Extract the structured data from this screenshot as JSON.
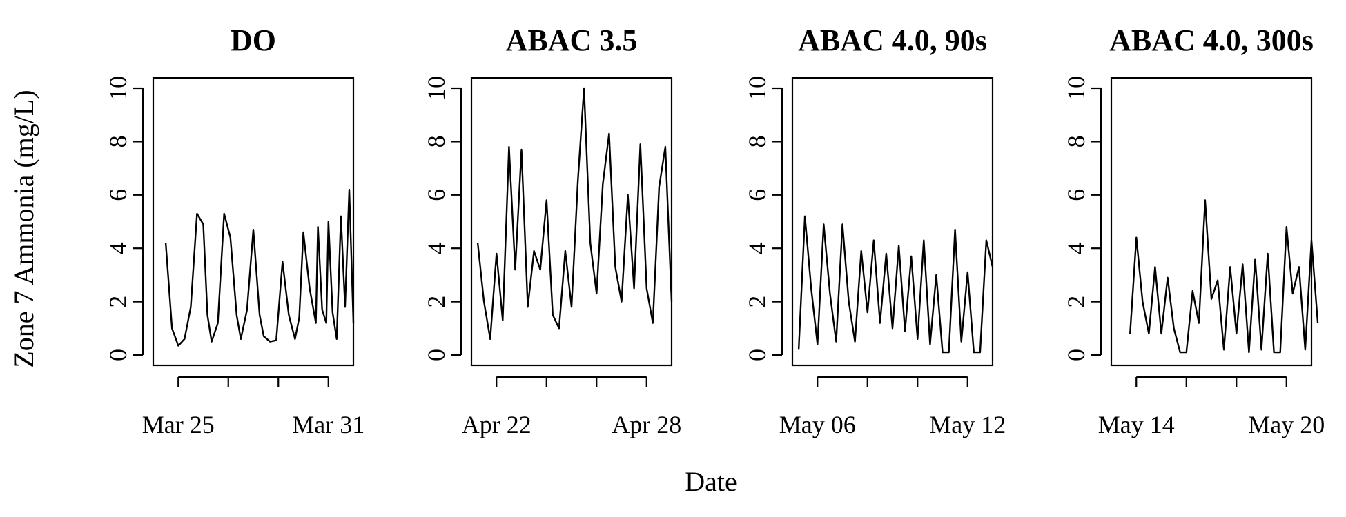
{
  "chart_data": {
    "type": "line",
    "xlabel": "Date",
    "ylabel": "Zone 7 Ammonia (mg/L)",
    "panels": [
      {
        "title": "DO",
        "xlim": [
          "2023-03-24",
          "2023-04-01"
        ],
        "xticks": [
          "2023-03-25",
          "2023-03-27",
          "2023-03-29",
          "2023-03-31"
        ],
        "xtick_labels": [
          "Mar 25",
          "",
          "",
          "Mar 31"
        ],
        "ylim": [
          0,
          10
        ],
        "yticks": [
          0,
          2,
          4,
          6,
          8,
          10
        ],
        "series": [
          {
            "x": [
              "2023-03-24 12:00",
              "2023-03-24 18:00",
              "2023-03-25 00:00",
              "2023-03-25 06:00",
              "2023-03-25 12:00",
              "2023-03-25 18:00",
              "2023-03-26 00:00",
              "2023-03-26 04:00",
              "2023-03-26 08:00",
              "2023-03-26 14:00",
              "2023-03-26 20:00",
              "2023-03-27 02:00",
              "2023-03-27 08:00",
              "2023-03-27 12:00",
              "2023-03-27 18:00",
              "2023-03-28 00:00",
              "2023-03-28 06:00",
              "2023-03-28 10:00",
              "2023-03-28 16:00",
              "2023-03-28 22:00",
              "2023-03-29 04:00",
              "2023-03-29 10:00",
              "2023-03-29 16:00",
              "2023-03-29 20:00",
              "2023-03-30 00:00",
              "2023-03-30 06:00",
              "2023-03-30 12:00",
              "2023-03-30 14:00",
              "2023-03-30 18:00",
              "2023-03-30 22:00",
              "2023-03-31 00:00",
              "2023-03-31 04:00",
              "2023-03-31 08:00",
              "2023-03-31 12:00",
              "2023-03-31 16:00",
              "2023-03-31 20:00",
              "2023-04-01 00:00"
            ],
            "y": [
              4.2,
              1.0,
              0.35,
              0.6,
              1.8,
              5.3,
              4.9,
              1.5,
              0.5,
              1.2,
              5.3,
              4.4,
              1.5,
              0.6,
              1.7,
              4.7,
              1.5,
              0.7,
              0.5,
              0.55,
              3.5,
              1.5,
              0.6,
              1.4,
              4.6,
              2.5,
              1.2,
              4.8,
              1.7,
              1.2,
              5.0,
              1.6,
              0.6,
              5.2,
              1.8,
              6.2,
              1.2
            ]
          }
        ]
      },
      {
        "title": "ABAC 3.5",
        "xlim": [
          "2023-04-21",
          "2023-04-29"
        ],
        "xticks": [
          "2023-04-22",
          "2023-04-24",
          "2023-04-26",
          "2023-04-28"
        ],
        "xtick_labels": [
          "Apr 22",
          "",
          "",
          "Apr 28"
        ],
        "ylim": [
          0,
          10
        ],
        "yticks": [
          0,
          2,
          4,
          6,
          8,
          10
        ],
        "series": [
          {
            "x": [
              "2023-04-21 06:00",
              "2023-04-21 12:00",
              "2023-04-21 18:00",
              "2023-04-22 00:00",
              "2023-04-22 06:00",
              "2023-04-22 12:00",
              "2023-04-22 18:00",
              "2023-04-23 00:00",
              "2023-04-23 06:00",
              "2023-04-23 12:00",
              "2023-04-23 18:00",
              "2023-04-24 00:00",
              "2023-04-24 06:00",
              "2023-04-24 12:00",
              "2023-04-24 18:00",
              "2023-04-25 00:00",
              "2023-04-25 06:00",
              "2023-04-25 12:00",
              "2023-04-25 18:00",
              "2023-04-26 00:00",
              "2023-04-26 06:00",
              "2023-04-26 12:00",
              "2023-04-26 18:00",
              "2023-04-27 00:00",
              "2023-04-27 06:00",
              "2023-04-27 12:00",
              "2023-04-27 18:00",
              "2023-04-28 00:00",
              "2023-04-28 06:00",
              "2023-04-28 12:00",
              "2023-04-28 18:00",
              "2023-04-29 00:00"
            ],
            "y": [
              4.2,
              2.0,
              0.6,
              3.8,
              1.3,
              7.8,
              3.2,
              7.7,
              1.8,
              3.9,
              3.2,
              5.8,
              1.5,
              1.0,
              3.9,
              1.8,
              6.5,
              10.0,
              4.2,
              2.3,
              6.4,
              8.3,
              3.3,
              2.0,
              6.0,
              2.5,
              7.9,
              2.5,
              1.2,
              6.3,
              7.8,
              2.0
            ]
          }
        ]
      },
      {
        "title": "ABAC 4.0, 90s",
        "xlim": [
          "2023-05-05",
          "2023-05-13"
        ],
        "xticks": [
          "2023-05-06",
          "2023-05-08",
          "2023-05-10",
          "2023-05-12"
        ],
        "xtick_labels": [
          "May 06",
          "",
          "",
          "May 12"
        ],
        "ylim": [
          0,
          10
        ],
        "yticks": [
          0,
          2,
          4,
          6,
          8,
          10
        ],
        "series": [
          {
            "x": [
              "2023-05-05 06:00",
              "2023-05-05 12:00",
              "2023-05-05 18:00",
              "2023-05-06 00:00",
              "2023-05-06 06:00",
              "2023-05-06 12:00",
              "2023-05-06 18:00",
              "2023-05-07 00:00",
              "2023-05-07 06:00",
              "2023-05-07 12:00",
              "2023-05-07 18:00",
              "2023-05-08 00:00",
              "2023-05-08 06:00",
              "2023-05-08 12:00",
              "2023-05-08 18:00",
              "2023-05-09 00:00",
              "2023-05-09 06:00",
              "2023-05-09 12:00",
              "2023-05-09 18:00",
              "2023-05-10 00:00",
              "2023-05-10 06:00",
              "2023-05-10 12:00",
              "2023-05-10 18:00",
              "2023-05-11 00:00",
              "2023-05-11 06:00",
              "2023-05-11 12:00",
              "2023-05-11 18:00",
              "2023-05-12 00:00",
              "2023-05-12 06:00",
              "2023-05-12 12:00",
              "2023-05-12 18:00",
              "2023-05-13 00:00"
            ],
            "y": [
              0.2,
              5.2,
              2.5,
              0.4,
              4.9,
              2.3,
              0.5,
              4.9,
              2.0,
              0.5,
              3.9,
              1.6,
              4.3,
              1.2,
              3.8,
              1.0,
              4.1,
              0.9,
              3.7,
              0.6,
              4.3,
              0.4,
              3.0,
              0.1,
              0.1,
              4.7,
              0.5,
              3.1,
              0.1,
              0.1,
              4.3,
              3.3
            ]
          }
        ]
      },
      {
        "title": "ABAC 4.0, 300s",
        "xlim": [
          "2023-05-13",
          "2023-05-21"
        ],
        "xticks": [
          "2023-05-14",
          "2023-05-16",
          "2023-05-18",
          "2023-05-20"
        ],
        "xtick_labels": [
          "May 14",
          "",
          "",
          "May 20"
        ],
        "ylim": [
          0,
          10
        ],
        "yticks": [
          0,
          2,
          4,
          6,
          8,
          10
        ],
        "series": [
          {
            "x": [
              "2023-05-13 18:00",
              "2023-05-14 00:00",
              "2023-05-14 06:00",
              "2023-05-14 12:00",
              "2023-05-14 18:00",
              "2023-05-15 00:00",
              "2023-05-15 06:00",
              "2023-05-15 12:00",
              "2023-05-15 18:00",
              "2023-05-16 00:00",
              "2023-05-16 06:00",
              "2023-05-16 12:00",
              "2023-05-16 18:00",
              "2023-05-17 00:00",
              "2023-05-17 06:00",
              "2023-05-17 12:00",
              "2023-05-17 18:00",
              "2023-05-18 00:00",
              "2023-05-18 06:00",
              "2023-05-18 12:00",
              "2023-05-18 18:00",
              "2023-05-19 00:00",
              "2023-05-19 06:00",
              "2023-05-19 12:00",
              "2023-05-19 18:00",
              "2023-05-20 00:00",
              "2023-05-20 06:00",
              "2023-05-20 12:00",
              "2023-05-20 18:00",
              "2023-05-21 00:00",
              "2023-05-21 06:00"
            ],
            "y": [
              0.8,
              4.4,
              2.0,
              0.8,
              3.3,
              0.8,
              2.9,
              1.0,
              0.1,
              0.1,
              2.4,
              1.2,
              5.8,
              2.1,
              2.8,
              0.2,
              3.3,
              0.8,
              3.4,
              0.1,
              3.6,
              0.2,
              3.8,
              0.1,
              0.1,
              4.8,
              2.3,
              3.3,
              0.2,
              4.3,
              1.2
            ]
          }
        ]
      }
    ]
  }
}
